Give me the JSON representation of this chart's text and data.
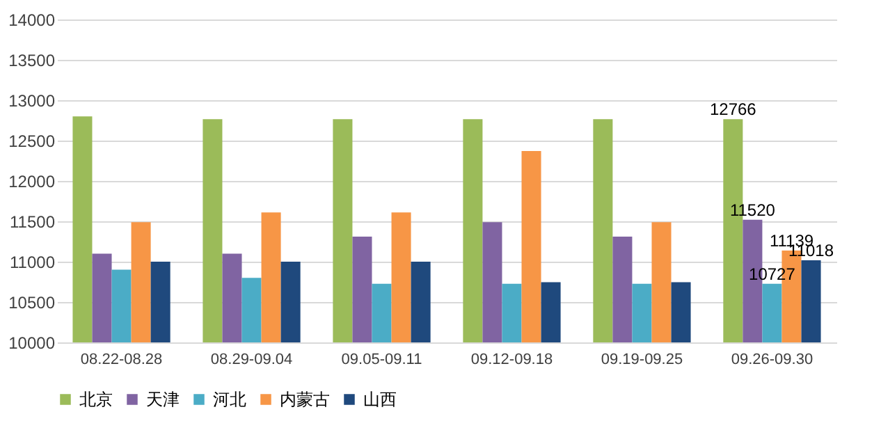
{
  "chart_data": {
    "type": "bar",
    "categories": [
      "08.22-08.28",
      "08.29-09.04",
      "09.05-09.11",
      "09.12-09.18",
      "09.19-09.25",
      "09.26-09.30"
    ],
    "series": [
      {
        "name": "北京",
        "color": "#9bbb59",
        "values": [
          12800,
          12766,
          12766,
          12766,
          12766,
          12766
        ],
        "value_labels": [
          null,
          null,
          null,
          null,
          null,
          "12766"
        ]
      },
      {
        "name": "天津",
        "color": "#8064a2",
        "values": [
          11100,
          11100,
          11310,
          11490,
          11310,
          11520
        ],
        "value_labels": [
          null,
          null,
          null,
          null,
          null,
          "11520"
        ]
      },
      {
        "name": "河北",
        "color": "#4bacc6",
        "values": [
          10900,
          10800,
          10727,
          10727,
          10727,
          10727
        ],
        "value_labels": [
          null,
          null,
          null,
          null,
          null,
          "10727"
        ]
      },
      {
        "name": "内蒙古",
        "color": "#f79646",
        "values": [
          11490,
          11610,
          11610,
          12370,
          11490,
          11139
        ],
        "value_labels": [
          null,
          null,
          null,
          null,
          null,
          "11139"
        ]
      },
      {
        "name": "山西",
        "color": "#1f497d",
        "values": [
          11000,
          11000,
          11000,
          10745,
          10745,
          11018
        ],
        "value_labels": [
          null,
          null,
          null,
          null,
          null,
          "11018"
        ]
      }
    ],
    "ylim": [
      10000,
      14000
    ],
    "yticks": [
      10000,
      10500,
      11000,
      11500,
      12000,
      12500,
      13000,
      13500,
      14000
    ],
    "grid": "y",
    "legend": "bottom"
  }
}
